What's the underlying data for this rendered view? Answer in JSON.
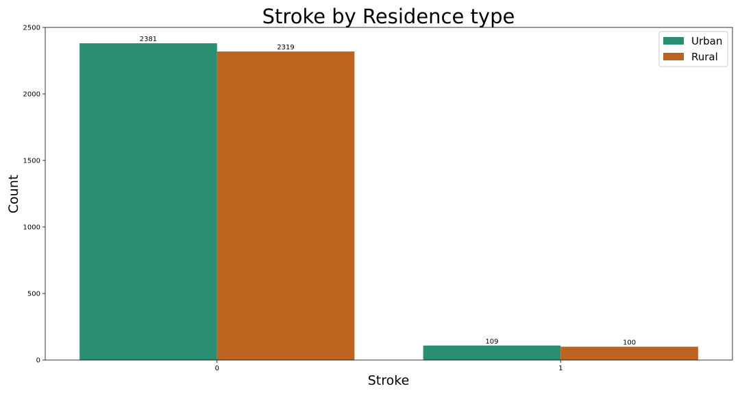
{
  "chart_data": {
    "type": "bar",
    "title": "Stroke by Residence type",
    "xlabel": "Stroke",
    "ylabel": "Count",
    "categories": [
      "0",
      "1"
    ],
    "series": [
      {
        "name": "Urban",
        "values": [
          2381,
          109
        ],
        "color": "#2a8f72"
      },
      {
        "name": "Rural",
        "values": [
          2319,
          100
        ],
        "color": "#bd631f"
      }
    ],
    "ylim": [
      0,
      2500
    ],
    "yticks": [
      0,
      500,
      1000,
      1500,
      2000,
      2500
    ],
    "data_labels": [
      [
        "2381",
        "109"
      ],
      [
        "2319",
        "100"
      ]
    ],
    "legend": "top-right",
    "grid": false
  }
}
